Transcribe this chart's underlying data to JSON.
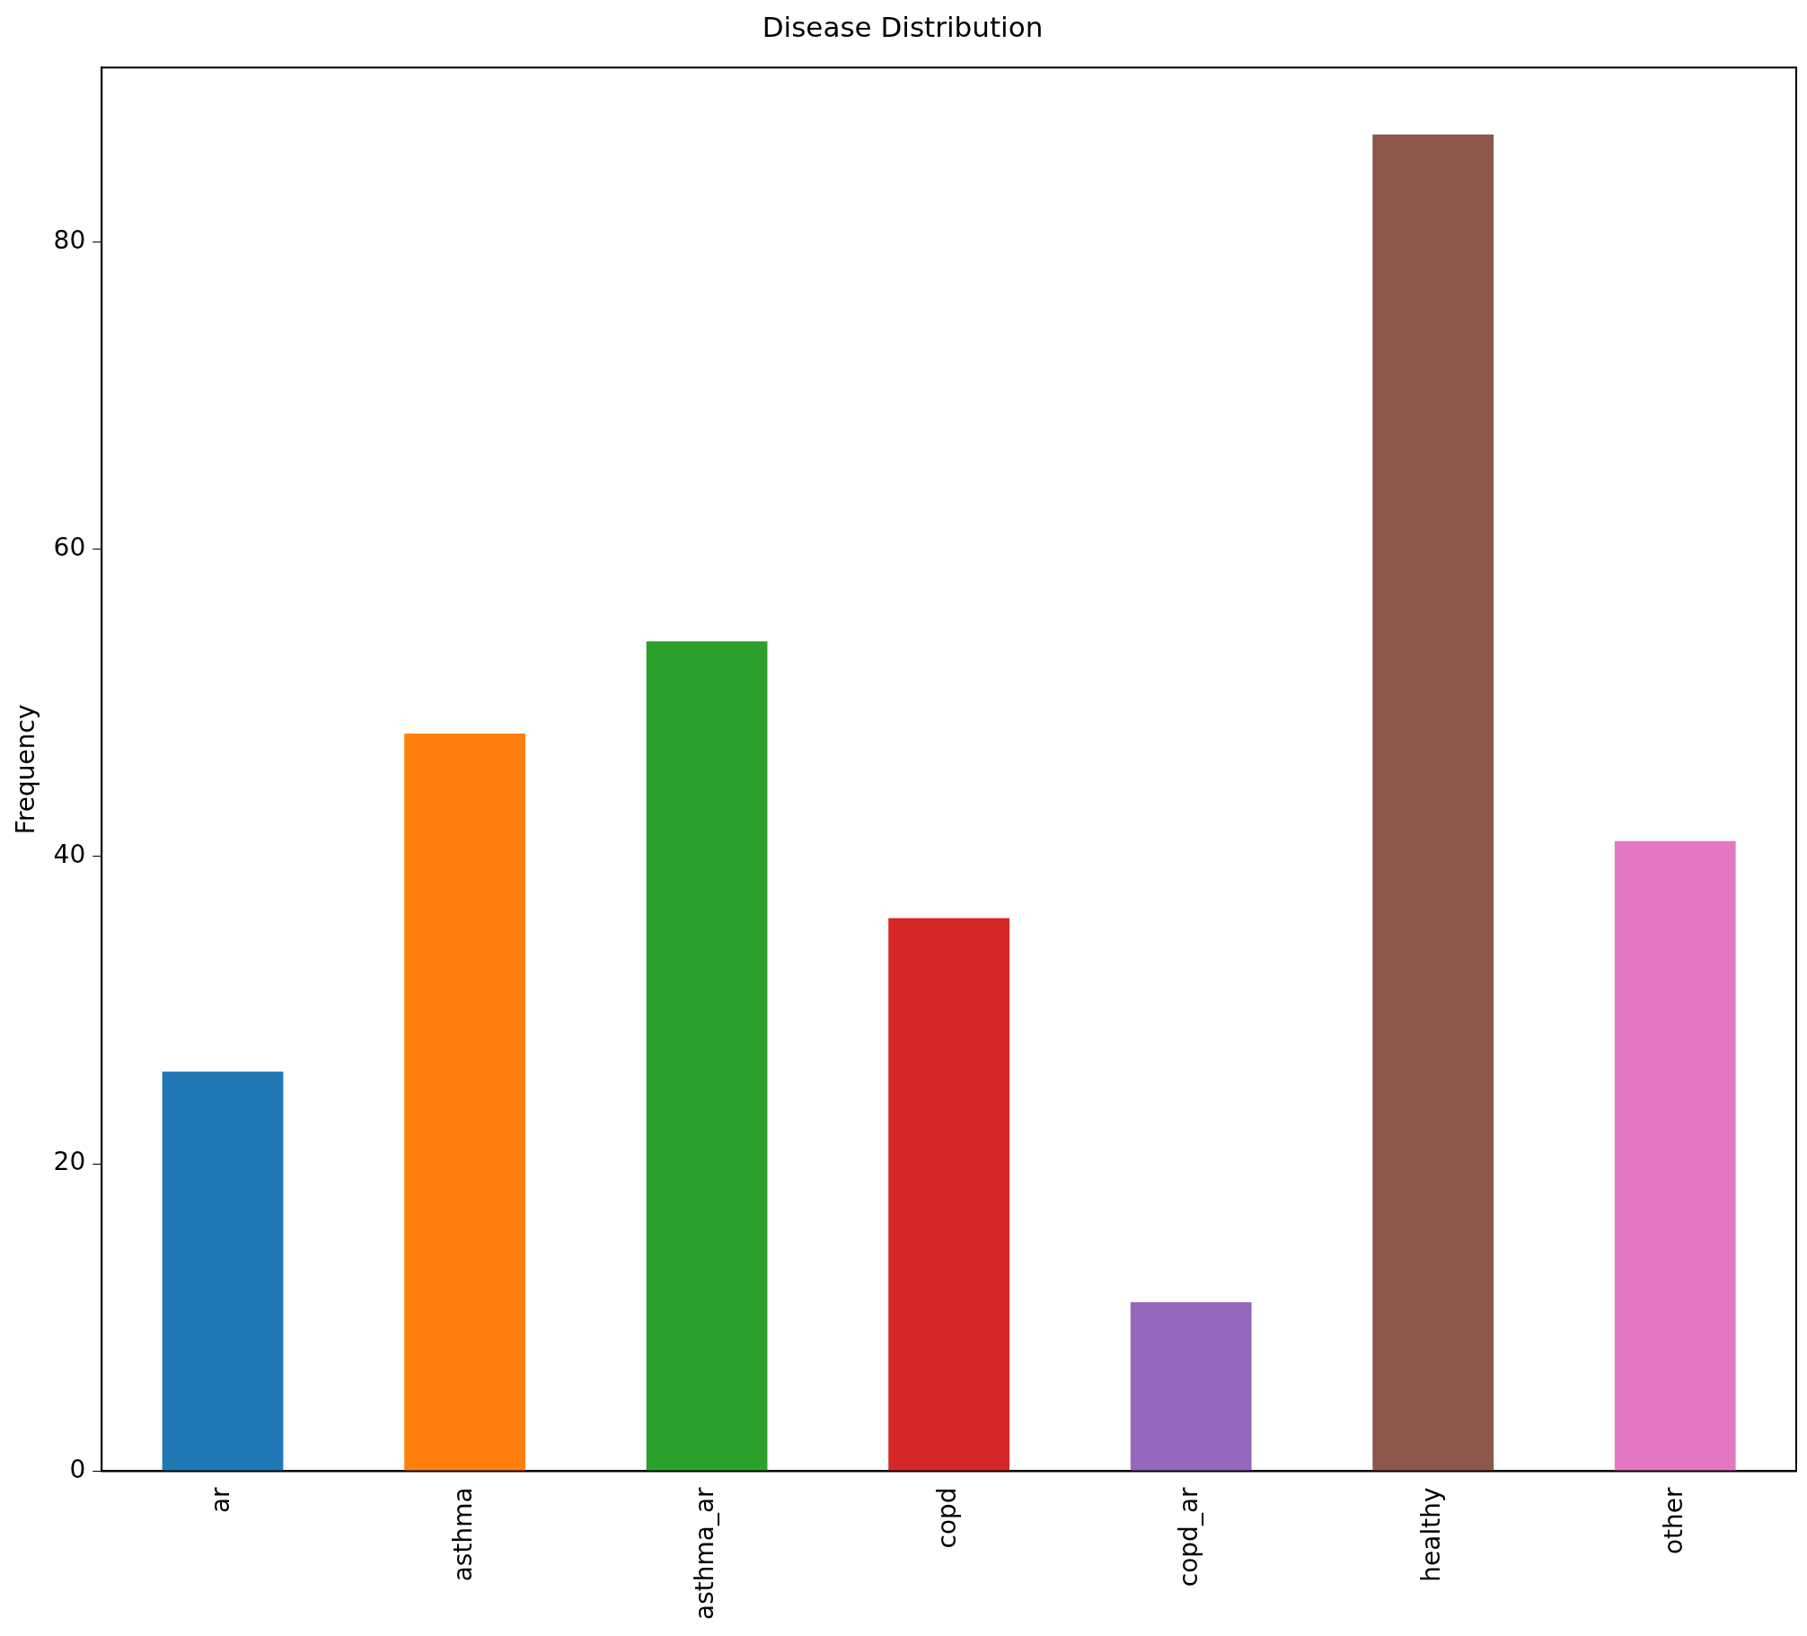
{
  "chart_data": {
    "type": "bar",
    "title": "Disease Distribution",
    "ylabel": "Frequency",
    "categories": [
      "ar",
      "asthma",
      "asthma_ar",
      "copd",
      "copd_ar",
      "healthy",
      "other"
    ],
    "values": [
      26,
      48,
      54,
      36,
      11,
      87,
      41
    ],
    "colors": [
      "#1f77b4",
      "#ff7f0e",
      "#2ca02c",
      "#d62728",
      "#9467bd",
      "#8c564b",
      "#e377c2"
    ],
    "ylim": [
      0,
      91.35
    ],
    "yticks": [
      0,
      20,
      40,
      60,
      80
    ],
    "grid": false,
    "legend": false
  }
}
